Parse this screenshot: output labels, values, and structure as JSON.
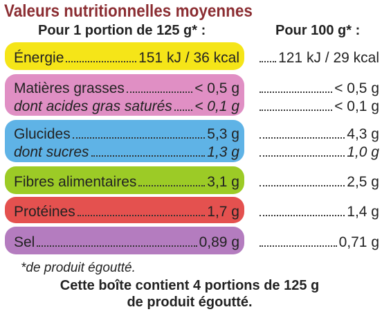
{
  "title": "Valeurs nutritionnelles moyennes",
  "headers": {
    "per_portion": "Pour 1 portion de 125 g* :",
    "per_100g": "Pour 100 g* :"
  },
  "colors": {
    "title": "#8b2d32",
    "energie": "#f5e518",
    "matieres_grasses": "#e08fc4",
    "glucides": "#5fb3e6",
    "fibres": "#9ccb26",
    "proteines": "#e4514f",
    "sel": "#b47cbf"
  },
  "rows": {
    "energie": {
      "label": "Énergie",
      "portion": "151 kJ / 36 kcal",
      "per100": "121 kJ / 29 kcal"
    },
    "matieres_grasses": {
      "label": "Matières grasses",
      "portion": "< 0,5 g",
      "per100": "< 0,5 g"
    },
    "acides_gras_satures": {
      "label": "dont acides gras saturés",
      "portion": "< 0,1 g",
      "per100": "< 0,1 g"
    },
    "glucides": {
      "label": "Glucides",
      "portion": "5,3 g",
      "per100": "4,3 g"
    },
    "sucres": {
      "label": "dont sucres",
      "portion": "1,3 g",
      "per100": "1,0 g"
    },
    "fibres": {
      "label": "Fibres alimentaires",
      "portion": "3,1 g",
      "per100": "2,5 g"
    },
    "proteines": {
      "label": "Protéines",
      "portion": "1,7 g",
      "per100": "1,4 g"
    },
    "sel": {
      "label": "Sel",
      "portion": "0,89 g",
      "per100": "0,71 g"
    }
  },
  "footnote": "*de produit égoutté.",
  "footer": {
    "line1": "Cette boîte contient 4 portions de 125 g",
    "line2": "de produit égoutté."
  }
}
